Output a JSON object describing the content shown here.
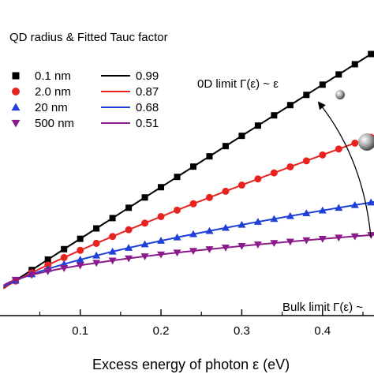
{
  "chart_data": {
    "type": "line",
    "title": "",
    "xlabel": "Excess energy of photon ε (eV)",
    "ylabel": "",
    "xlim": [
      0.03,
      0.45
    ],
    "ylim": [
      -0.0125,
      0.13
    ],
    "xticks": [
      0.1,
      0.2,
      0.3,
      0.4
    ],
    "tick_labels": [
      "0.1",
      "0.2",
      "0.3",
      "0.4"
    ],
    "grid": false,
    "legend_title": "QD radius & Fitted Tauc factor",
    "legend_position": "top-left",
    "marker_x": [
      0.02,
      0.04,
      0.06,
      0.08,
      0.1,
      0.12,
      0.14,
      0.16,
      0.18,
      0.2,
      0.22,
      0.24,
      0.26,
      0.28,
      0.3,
      0.32,
      0.34,
      0.36,
      0.38,
      0.4,
      0.42,
      0.44,
      0.46
    ],
    "series": [
      {
        "name": "0.1  nm",
        "fit_label": "0.99",
        "color": "#000000",
        "marker": "square",
        "scale": 0.2609,
        "exponent": 0.99
      },
      {
        "name": "2.0  nm",
        "fit_label": "0.87",
        "color": "#e8231f",
        "marker": "circle",
        "scale": 0.1542,
        "exponent": 0.87
      },
      {
        "name": "20  nm",
        "fit_label": "0.68",
        "color": "#1e3fd8",
        "marker": "triangle-up",
        "scale": 0.0767,
        "exponent": 0.68
      },
      {
        "name": "500 nm",
        "fit_label": "0.51",
        "color": "#8b1a8b",
        "marker": "triangle-down",
        "scale": 0.0425,
        "exponent": 0.51
      }
    ],
    "annotations": {
      "top": "0D limit Γ(ε) ~ ε",
      "bottom": "Bulk limit Γ(ε) ~"
    }
  }
}
